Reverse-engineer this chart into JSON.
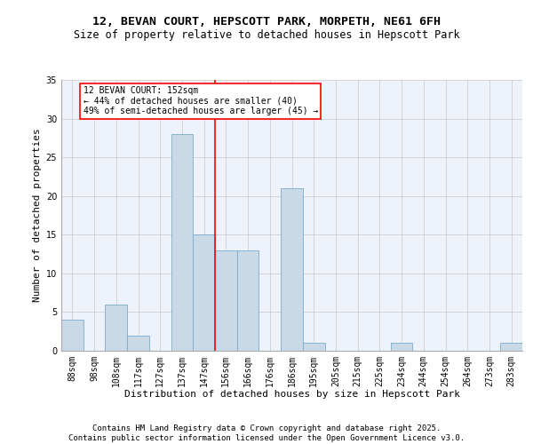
{
  "title": "12, BEVAN COURT, HEPSCOTT PARK, MORPETH, NE61 6FH",
  "subtitle": "Size of property relative to detached houses in Hepscott Park",
  "xlabel": "Distribution of detached houses by size in Hepscott Park",
  "ylabel": "Number of detached properties",
  "bins": [
    "88sqm",
    "98sqm",
    "108sqm",
    "117sqm",
    "127sqm",
    "137sqm",
    "147sqm",
    "156sqm",
    "166sqm",
    "176sqm",
    "186sqm",
    "195sqm",
    "205sqm",
    "215sqm",
    "225sqm",
    "234sqm",
    "244sqm",
    "254sqm",
    "264sqm",
    "273sqm",
    "283sqm"
  ],
  "values": [
    4,
    0,
    6,
    2,
    0,
    28,
    15,
    13,
    13,
    0,
    21,
    1,
    0,
    0,
    0,
    1,
    0,
    0,
    0,
    0,
    1
  ],
  "bar_color": "#c9d9e8",
  "bar_edge_color": "#7aabcc",
  "ylim": [
    0,
    35
  ],
  "yticks": [
    0,
    5,
    10,
    15,
    20,
    25,
    30,
    35
  ],
  "vline_x": 6.5,
  "annotation_text": "12 BEVAN COURT: 152sqm\n← 44% of detached houses are smaller (40)\n49% of semi-detached houses are larger (45) →",
  "annotation_box_color": "white",
  "annotation_box_edge_color": "red",
  "vline_color": "red",
  "footer_line1": "Contains HM Land Registry data © Crown copyright and database right 2025.",
  "footer_line2": "Contains public sector information licensed under the Open Government Licence v3.0.",
  "background_color": "#eef2fb",
  "grid_color": "#c8c8c8",
  "title_fontsize": 9.5,
  "subtitle_fontsize": 8.5,
  "axis_label_fontsize": 8,
  "tick_fontsize": 7,
  "annotation_fontsize": 7,
  "footer_fontsize": 6.5
}
